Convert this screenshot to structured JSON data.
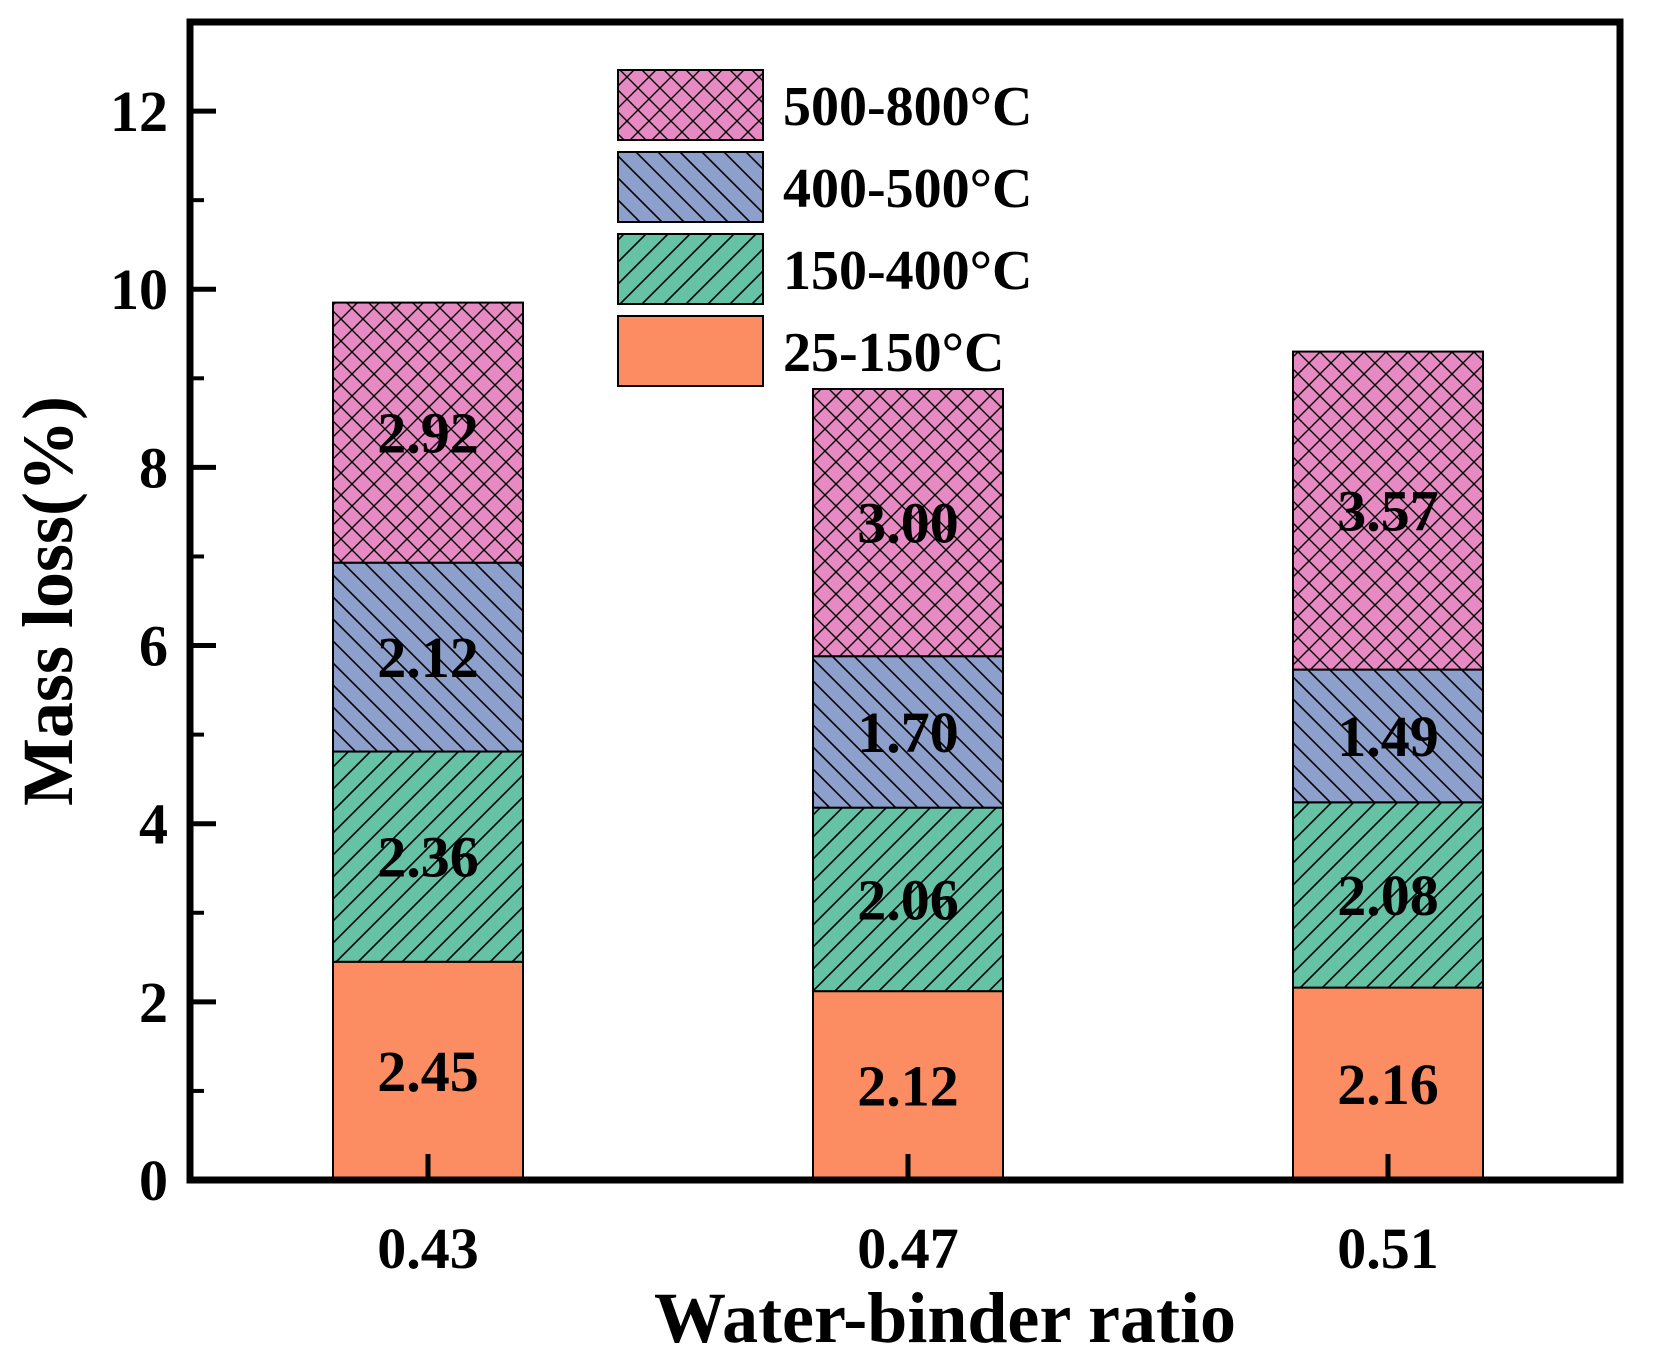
{
  "chart_data": {
    "type": "bar",
    "stacked": true,
    "title": "",
    "xlabel": "Water-binder ratio",
    "ylabel": "Mass loss(%)",
    "ylim": [
      0,
      13
    ],
    "yticks": [
      0,
      2,
      4,
      6,
      8,
      10,
      12
    ],
    "ytick_labels": [
      "0",
      "2",
      "4",
      "6",
      "8",
      "10",
      "12"
    ],
    "categories": [
      "0.43",
      "0.47",
      "0.51"
    ],
    "legend_position": "top-center",
    "series": [
      {
        "name": "25-150°C",
        "color": "#fc8d62",
        "pattern": "none",
        "values": [
          2.45,
          2.12,
          2.16
        ],
        "labels": [
          "2.45",
          "2.12",
          "2.16"
        ]
      },
      {
        "name": "150-400°C",
        "color": "#66c2a5",
        "pattern": "diagonal",
        "values": [
          2.36,
          2.06,
          2.08
        ],
        "labels": [
          "2.36",
          "2.06",
          "2.08"
        ]
      },
      {
        "name": "400-500°C",
        "color": "#8da0cb",
        "pattern": "backdiagonal",
        "values": [
          2.12,
          1.7,
          1.49
        ],
        "labels": [
          "2.12",
          "1.70",
          "1.49"
        ]
      },
      {
        "name": "500-800°C",
        "color": "#e78ac3",
        "pattern": "crosshatch",
        "values": [
          2.92,
          3.0,
          3.57
        ],
        "labels": [
          "2.92",
          "3.00",
          "3.57"
        ]
      }
    ]
  }
}
